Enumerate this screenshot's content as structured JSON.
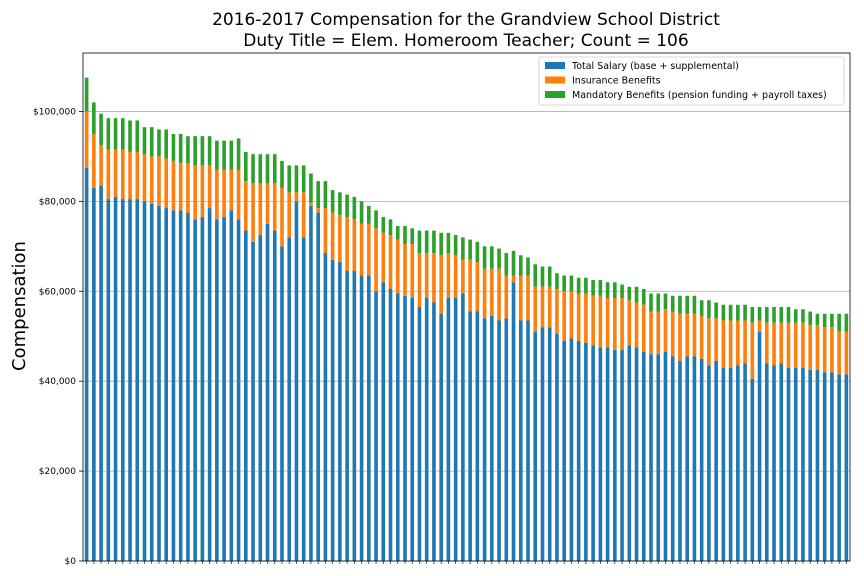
{
  "chart_data": {
    "type": "bar",
    "stacked": true,
    "title_lines": [
      "2016-2017 Compensation for the Grandview School District",
      "Duty Title = Elem. Homeroom Teacher; Count = 106"
    ],
    "xlabel": "",
    "ylabel": "Compensation",
    "ylim": [
      0,
      113000
    ],
    "yticks": [
      0,
      20000,
      40000,
      60000,
      80000,
      100000
    ],
    "ytick_labels": [
      "$0",
      "$20,000",
      "$40,000",
      "$60,000",
      "$80,000",
      "$100,000"
    ],
    "grid": "horizontal",
    "legend_position": "top-right",
    "series": [
      {
        "name": "Total Salary (base + supplemental)",
        "color": "#1f77b4",
        "values": [
          87500,
          83000,
          83500,
          80500,
          81000,
          80500,
          80500,
          80500,
          80000,
          79500,
          79000,
          78500,
          78000,
          78000,
          77500,
          76000,
          76500,
          78500,
          76000,
          76500,
          78000,
          76000,
          73500,
          71000,
          72500,
          75000,
          73500,
          70000,
          72000,
          80000,
          72000,
          79000,
          77500,
          68500,
          67000,
          66500,
          64500,
          64500,
          63500,
          63500,
          60000,
          62000,
          60500,
          59500,
          59000,
          58500,
          56500,
          58500,
          57500,
          55000,
          58500,
          58500,
          59500,
          55500,
          55500,
          54000,
          54500,
          53500,
          54000,
          62000,
          53500,
          53500,
          51000,
          52000,
          52000,
          50500,
          49000,
          49500,
          49000,
          48500,
          48000,
          47500,
          47500,
          47000,
          47000,
          48000,
          47500,
          46500,
          46000,
          46000,
          46500,
          45500,
          44500,
          45500,
          45500,
          45000,
          43500,
          44500,
          43000,
          43000,
          43500,
          44000,
          40500,
          51000,
          44000,
          43500,
          44000,
          43000,
          43000,
          43000,
          42500,
          42500,
          42000,
          42000,
          41500,
          41500
        ]
      },
      {
        "name": "Insurance Benefits",
        "color": "#ff7f0e",
        "values": [
          12500,
          12000,
          9000,
          11000,
          10500,
          11000,
          10500,
          10500,
          10500,
          10500,
          11000,
          11000,
          11000,
          10500,
          11000,
          12000,
          11500,
          9500,
          11000,
          10500,
          9000,
          11000,
          11000,
          13000,
          11500,
          9000,
          10500,
          13000,
          10000,
          2000,
          10000,
          700,
          1000,
          10000,
          10500,
          10500,
          12000,
          11500,
          11500,
          11500,
          14000,
          11000,
          12000,
          12000,
          11500,
          12000,
          12000,
          10000,
          11000,
          13000,
          10000,
          9500,
          7500,
          11500,
          11000,
          11000,
          10500,
          11500,
          9500,
          1500,
          10000,
          10000,
          10000,
          9000,
          9000,
          10000,
          11000,
          10500,
          10500,
          11000,
          11000,
          11500,
          11000,
          11500,
          11500,
          10000,
          10000,
          10500,
          9500,
          9500,
          9500,
          10000,
          10500,
          9500,
          9500,
          9500,
          10500,
          9500,
          10500,
          10500,
          10000,
          9500,
          12500,
          2500,
          9000,
          9500,
          9000,
          10000,
          10000,
          10000,
          10000,
          10000,
          10000,
          10000,
          9500,
          9500
        ]
      },
      {
        "name": "Mandatory Benefits (pension funding + payroll taxes)",
        "color": "#2ca02c",
        "values": [
          7500,
          7000,
          7000,
          7000,
          7000,
          7000,
          7000,
          7000,
          6000,
          6500,
          6000,
          6500,
          6000,
          6500,
          6000,
          6500,
          6500,
          6500,
          6500,
          6500,
          6500,
          7000,
          6500,
          6500,
          6500,
          6500,
          6500,
          6000,
          6000,
          6000,
          6000,
          6500,
          6000,
          6000,
          5000,
          5000,
          5000,
          5000,
          5000,
          4000,
          4000,
          3500,
          3500,
          3000,
          4000,
          3500,
          5000,
          5000,
          5000,
          5000,
          4500,
          4500,
          5000,
          4500,
          4500,
          5000,
          5000,
          4500,
          5000,
          5500,
          4500,
          4000,
          5000,
          4500,
          4500,
          3500,
          3500,
          3500,
          3500,
          3500,
          3500,
          3500,
          3500,
          3500,
          3000,
          3000,
          3500,
          3500,
          4000,
          4000,
          3500,
          3500,
          4000,
          4000,
          4000,
          3500,
          4000,
          3500,
          3500,
          3500,
          3500,
          3500,
          3500,
          3000,
          3500,
          3500,
          3500,
          3500,
          3000,
          3000,
          3000,
          2500,
          3000,
          3000,
          4000,
          4000
        ]
      }
    ]
  }
}
